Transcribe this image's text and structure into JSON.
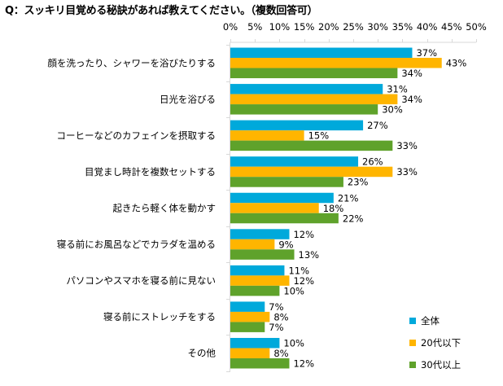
{
  "chart_data": {
    "type": "bar",
    "orientation": "horizontal",
    "title": "Q：スッキリ目覚める秘訣があれば教えてください。（複数回答可）",
    "xlabel": "",
    "ylabel": "",
    "xlim": [
      0,
      50
    ],
    "x_ticks": [
      "0%",
      "5%",
      "10%",
      "15%",
      "20%",
      "25%",
      "30%",
      "35%",
      "40%",
      "45%",
      "50%"
    ],
    "x_tick_values": [
      0,
      5,
      10,
      15,
      20,
      25,
      30,
      35,
      40,
      45,
      50
    ],
    "grid": true,
    "legend_position": "bottom-right",
    "categories": [
      "顔を洗ったり、シャワーを浴びたりする",
      "日光を浴びる",
      "コーヒーなどのカフェインを摂取する",
      "目覚まし時計を複数セットする",
      "起きたら軽く体を動かす",
      "寝る前にお風呂などでカラダを温める",
      "パソコンやスマホを寝る前に見ない",
      "寝る前にストレッチをする",
      "その他"
    ],
    "series": [
      {
        "name": "全体",
        "color": "#00A9DB",
        "values": [
          37,
          31,
          27,
          26,
          21,
          12,
          11,
          7,
          10
        ]
      },
      {
        "name": "20代以下",
        "color": "#FFB500",
        "values": [
          43,
          34,
          15,
          33,
          18,
          9,
          12,
          8,
          8
        ]
      },
      {
        "name": "30代以上",
        "color": "#5FA22B",
        "values": [
          34,
          30,
          33,
          23,
          22,
          13,
          10,
          7,
          12
        ]
      }
    ],
    "value_suffix": "%"
  }
}
